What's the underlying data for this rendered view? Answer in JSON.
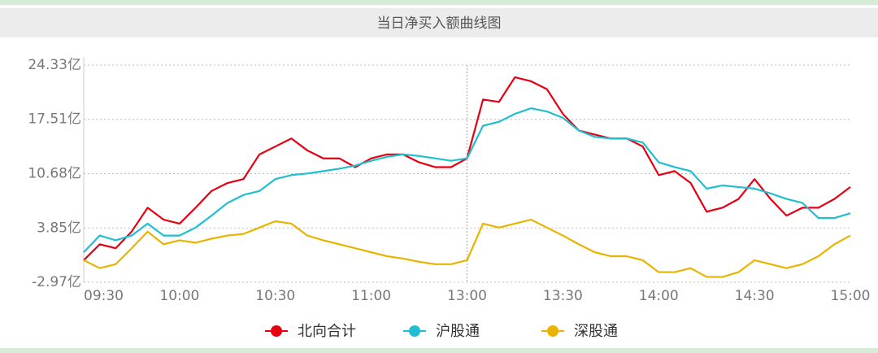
{
  "chart_data": {
    "type": "line",
    "title": "当日净买入额曲线图",
    "categories": [
      "09:30",
      null,
      null,
      null,
      null,
      null,
      "10:00",
      null,
      null,
      null,
      null,
      null,
      "10:30",
      null,
      null,
      null,
      null,
      null,
      "11:00",
      null,
      null,
      null,
      null,
      null,
      "13:00",
      null,
      null,
      null,
      null,
      null,
      "13:30",
      null,
      null,
      null,
      null,
      null,
      "14:00",
      null,
      null,
      null,
      null,
      null,
      "14:30",
      null,
      null,
      null,
      null,
      null,
      "15:00"
    ],
    "series": [
      {
        "name": "北向合计",
        "color": "#e60012",
        "values": [
          -0.2,
          1.8,
          1.3,
          3.4,
          6.4,
          4.9,
          4.4,
          6.4,
          8.5,
          9.5,
          10.0,
          13.1,
          14.1,
          15.1,
          13.6,
          12.6,
          12.6,
          11.5,
          12.6,
          13.1,
          13.1,
          12.1,
          11.5,
          11.5,
          12.6,
          20.0,
          19.7,
          22.8,
          22.3,
          21.3,
          18.2,
          16.1,
          15.6,
          15.1,
          15.1,
          14.1,
          10.5,
          11.0,
          9.5,
          5.9,
          6.4,
          7.5,
          10.0,
          7.5,
          5.4,
          6.4,
          6.4,
          7.5,
          9.0
        ]
      },
      {
        "name": "沪股通",
        "color": "#1fbfd0",
        "values": [
          0.8,
          2.9,
          2.3,
          2.9,
          4.4,
          2.9,
          2.9,
          3.9,
          5.4,
          7.0,
          8.0,
          8.5,
          10.0,
          10.5,
          10.7,
          11.0,
          11.3,
          11.7,
          12.3,
          12.8,
          13.1,
          12.9,
          12.6,
          12.3,
          12.6,
          16.7,
          17.2,
          18.2,
          18.9,
          18.5,
          17.7,
          16.1,
          15.3,
          15.1,
          15.1,
          14.6,
          12.1,
          11.5,
          11.0,
          8.8,
          9.2,
          9.0,
          8.8,
          8.2,
          7.5,
          7.0,
          5.1,
          5.1,
          5.7
        ]
      },
      {
        "name": "深股通",
        "color": "#e8b400",
        "values": [
          -0.2,
          -1.2,
          -0.7,
          1.3,
          3.4,
          1.8,
          2.3,
          2.0,
          2.5,
          2.9,
          3.1,
          3.9,
          4.7,
          4.4,
          2.9,
          2.3,
          1.8,
          1.3,
          0.8,
          0.3,
          0.0,
          -0.4,
          -0.7,
          -0.7,
          -0.2,
          4.4,
          3.9,
          4.4,
          4.9,
          3.9,
          2.9,
          1.8,
          0.8,
          0.3,
          0.3,
          -0.2,
          -1.7,
          -1.7,
          -1.2,
          -2.3,
          -2.3,
          -1.7,
          -0.2,
          -0.7,
          -1.2,
          -0.7,
          0.3,
          1.8,
          2.9
        ]
      }
    ],
    "ylim": [
      -2.97,
      24.33
    ],
    "yticks": [
      {
        "value": -2.97,
        "label": "-2.97亿"
      },
      {
        "value": 3.85,
        "label": "3.85亿"
      },
      {
        "value": 10.68,
        "label": "10.68亿"
      },
      {
        "value": 17.51,
        "label": "17.51亿"
      },
      {
        "value": 24.33,
        "label": "24.33亿"
      }
    ],
    "grid": true
  }
}
